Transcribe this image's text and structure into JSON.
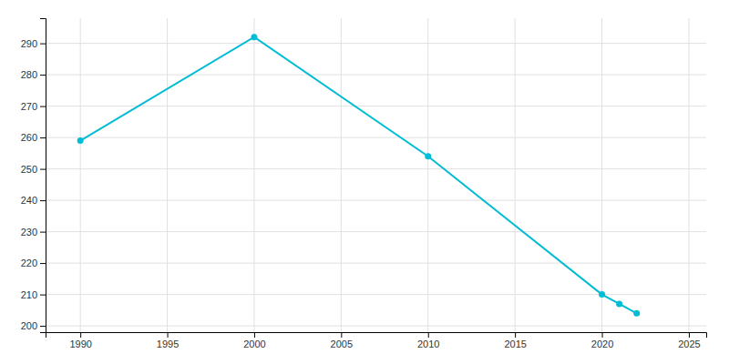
{
  "chart_data": {
    "type": "line",
    "x": [
      1990,
      2000,
      2010,
      2020,
      2021,
      2022
    ],
    "values": [
      259,
      292,
      254,
      210,
      207,
      204
    ],
    "color": "#00BCD4",
    "marker": "circle",
    "xlim": [
      1988,
      2026
    ],
    "xticks": [
      1990,
      1995,
      2000,
      2005,
      2010,
      2015,
      2020,
      2025
    ],
    "ylim": [
      198,
      298
    ],
    "yticks": [
      200,
      210,
      220,
      230,
      240,
      250,
      260,
      270,
      280,
      290
    ],
    "grid": true
  }
}
